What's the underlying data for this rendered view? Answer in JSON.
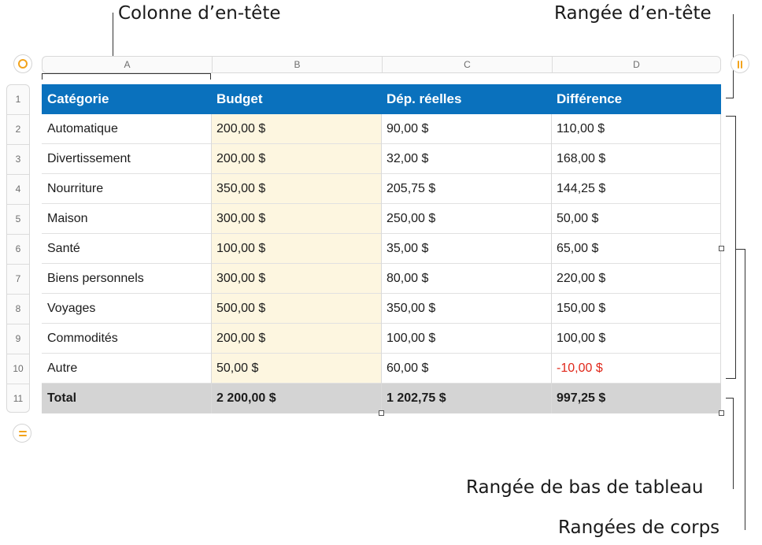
{
  "callouts": {
    "header_column": "Colonne d’en-tête",
    "header_row": "Rangée d’en-tête",
    "footer_row": "Rangée de bas de tableau",
    "body_rows": "Rangées de corps"
  },
  "column_letters": [
    "A",
    "B",
    "C",
    "D"
  ],
  "row_numbers": [
    "1",
    "2",
    "3",
    "4",
    "5",
    "6",
    "7",
    "8",
    "9",
    "10",
    "11"
  ],
  "icons": {
    "table_select": "circle-o-icon",
    "add_column": "pause-icon",
    "add_row": "equals-icon"
  },
  "colors": {
    "header_bg": "#0a71bd",
    "footer_bg": "#d4d4d4",
    "budget_bg": "#fdf6e0",
    "negative": "#e0281b",
    "control_accent": "#f2a31c"
  },
  "table": {
    "header": [
      "Catégorie",
      "Budget",
      "Dép. réelles",
      "Différence"
    ],
    "rows": [
      [
        "Automatique",
        "200,00 $",
        "90,00 $",
        "110,00 $"
      ],
      [
        "Divertissement",
        "200,00 $",
        "32,00 $",
        "168,00 $"
      ],
      [
        "Nourriture",
        "350,00 $",
        "205,75 $",
        "144,25 $"
      ],
      [
        "Maison",
        "300,00 $",
        "250,00 $",
        "50,00 $"
      ],
      [
        "Santé",
        "100,00 $",
        "35,00 $",
        "65,00 $"
      ],
      [
        "Biens personnels",
        "300,00 $",
        "80,00 $",
        "220,00 $"
      ],
      [
        "Voyages",
        "500,00 $",
        "350,00 $",
        "150,00 $"
      ],
      [
        "Commodités",
        "200,00 $",
        "100,00 $",
        "100,00 $"
      ],
      [
        "Autre",
        "50,00 $",
        "60,00 $",
        "-10,00 $"
      ]
    ],
    "footer": [
      "Total",
      "2 200,00 $",
      "1 202,75 $",
      "997,25 $"
    ]
  }
}
